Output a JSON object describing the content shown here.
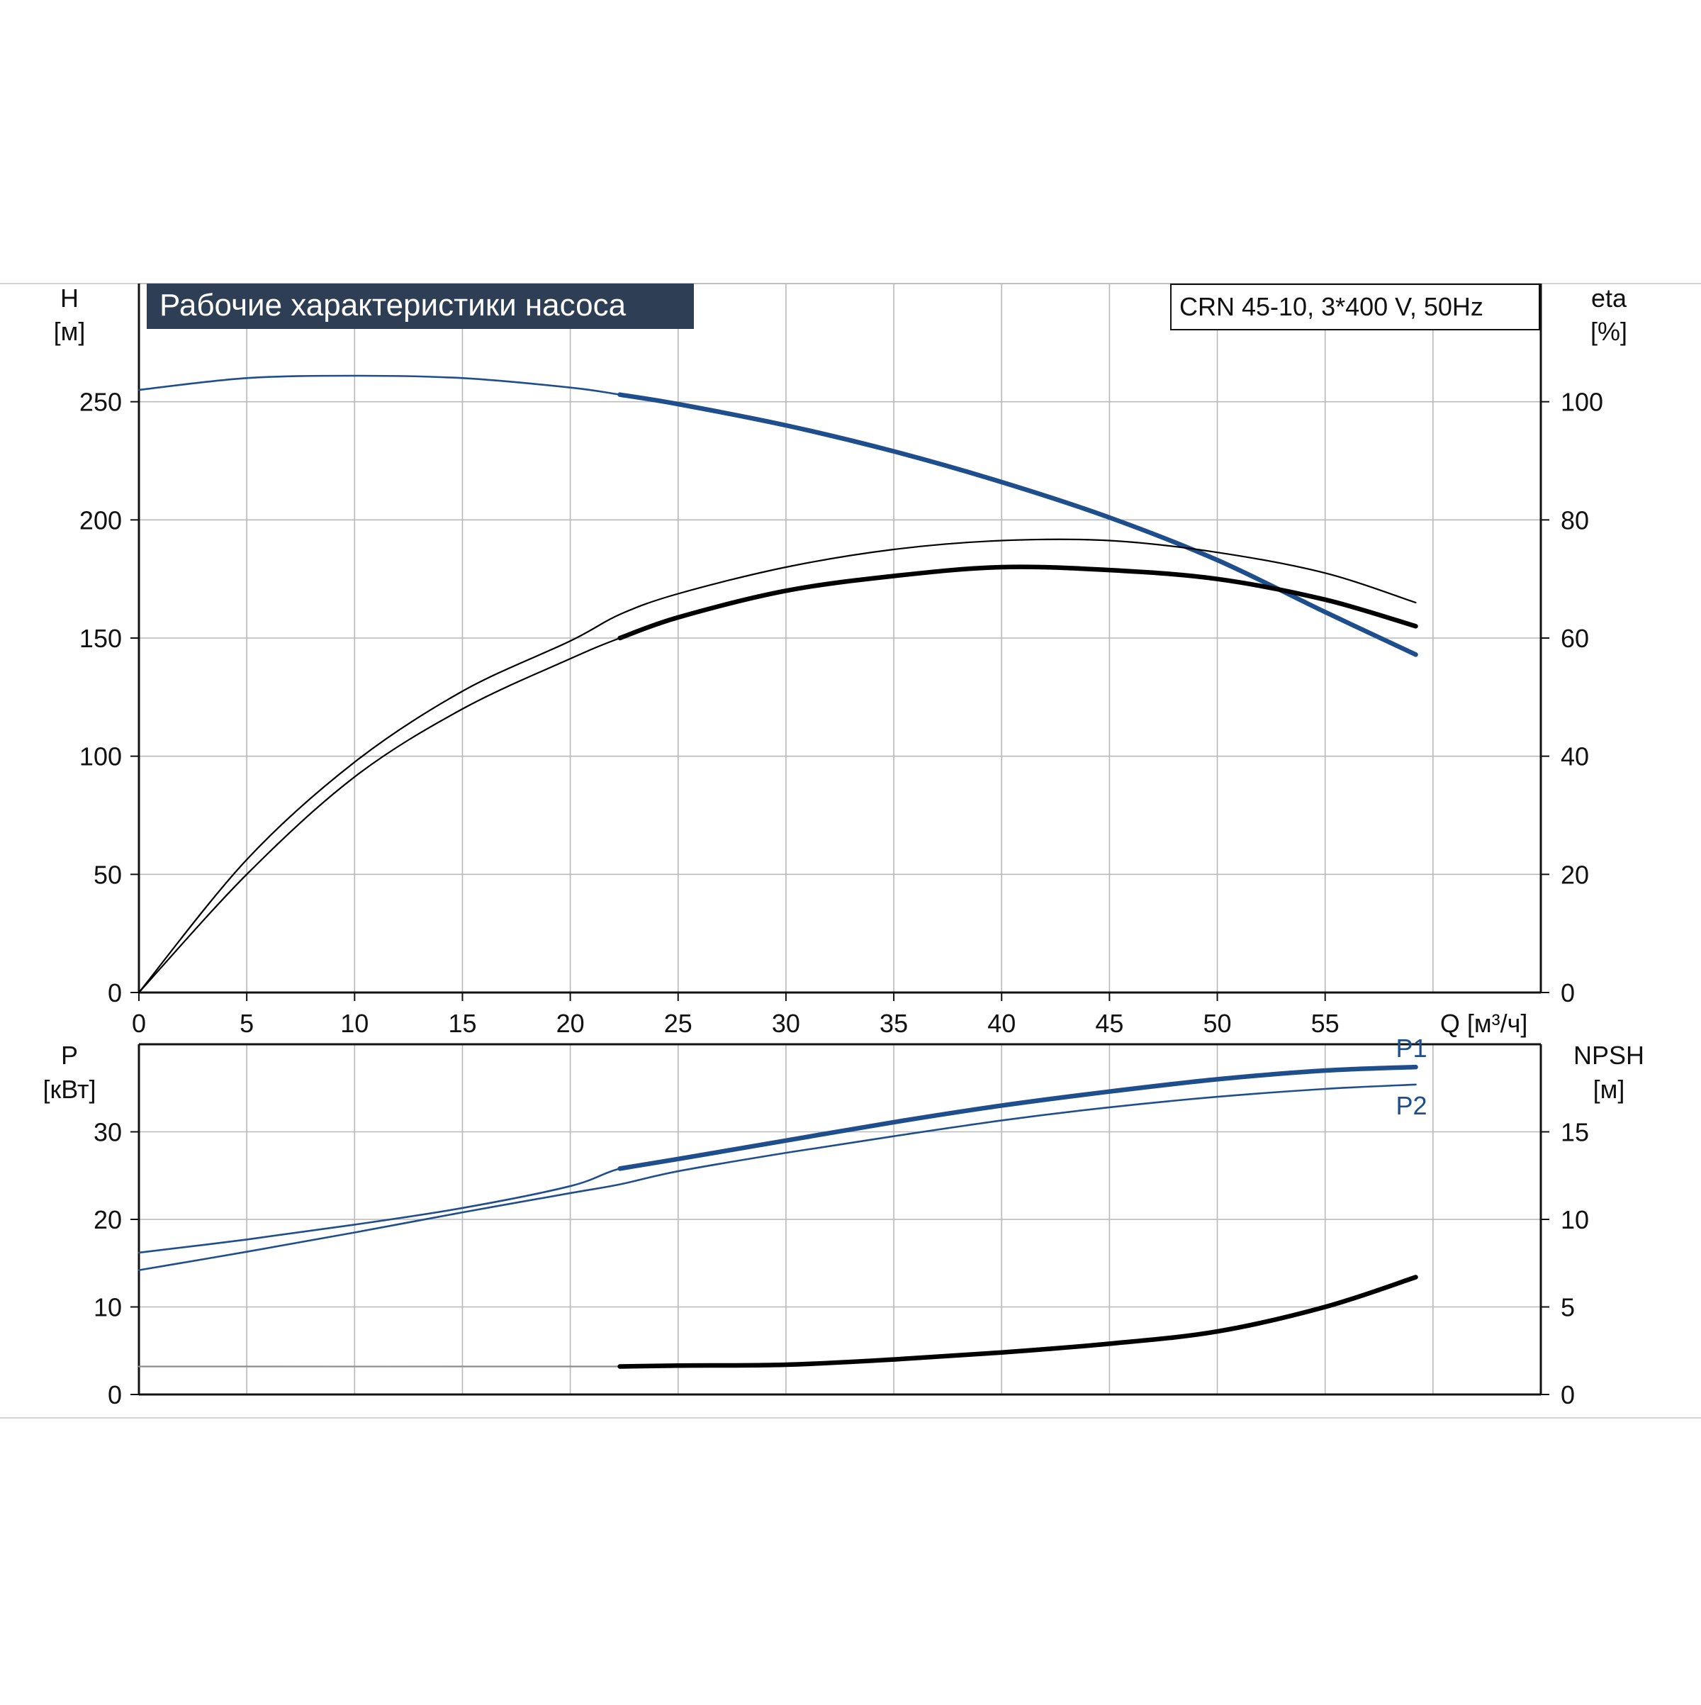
{
  "title_box": {
    "text": "Рабочие характеристики насоса",
    "bg": "#2e3f55",
    "fg": "#ffffff"
  },
  "model_box": {
    "text": "CRN 45-10, 3*400 V, 50Hz"
  },
  "colors": {
    "blue": "#1f4e8c",
    "black": "#000000",
    "grid": "#b9b9b9",
    "axis": "#111111",
    "gray_line": "#8c8c8c"
  },
  "chart_data": [
    {
      "type": "line",
      "name": "top",
      "xlabel": "Q [м³/ч]",
      "ylabel_left": [
        "H",
        "[м]"
      ],
      "ylabel_right": [
        "eta",
        "[%]"
      ],
      "xlim": [
        0,
        65
      ],
      "ylim_left": [
        0,
        300
      ],
      "ylim_right": [
        0,
        120
      ],
      "x_ticks": [
        0,
        5,
        10,
        15,
        20,
        25,
        30,
        35,
        40,
        45,
        50,
        55
      ],
      "y_ticks_left": [
        0,
        50,
        100,
        150,
        200,
        250
      ],
      "y_ticks_right": [
        0,
        20,
        40,
        60,
        80,
        100
      ],
      "grid": true,
      "series": [
        {
          "id": "head-curve",
          "axis": "left",
          "color": "blue",
          "thick_from": 22.3,
          "x": [
            0,
            5,
            10,
            15,
            20,
            22.3,
            25,
            30,
            35,
            40,
            45,
            50,
            55,
            59.2
          ],
          "y": [
            255,
            260,
            261,
            260,
            256,
            253,
            249,
            240,
            229,
            216,
            201,
            183,
            161,
            143
          ]
        },
        {
          "id": "efficiency-upper-curve",
          "axis": "right",
          "color": "black",
          "thick_from": null,
          "x": [
            0,
            5,
            10,
            15,
            20,
            22.3,
            25,
            30,
            35,
            40,
            45,
            50,
            55,
            59.2
          ],
          "y": [
            0,
            22.5,
            39,
            51,
            59.5,
            64,
            67.5,
            72,
            75,
            76.5,
            76.5,
            74.5,
            71,
            66
          ]
        },
        {
          "id": "efficiency-lower-curve",
          "axis": "right",
          "color": "black",
          "thick_from": 22.3,
          "x": [
            0,
            5,
            10,
            15,
            20,
            22.3,
            25,
            30,
            35,
            40,
            45,
            50,
            55,
            59.2
          ],
          "y": [
            0,
            20,
            36.5,
            48,
            56.5,
            60,
            63.5,
            68,
            70.5,
            72,
            71.5,
            70,
            66.5,
            62
          ]
        }
      ]
    },
    {
      "type": "line",
      "name": "bottom",
      "ylabel_left": [
        "P",
        "[кВт]"
      ],
      "ylabel_right": [
        "NPSH",
        "[м]"
      ],
      "xlim": [
        0,
        65
      ],
      "ylim_left": [
        0,
        40
      ],
      "ylim_right": [
        0,
        20
      ],
      "y_ticks_left": [
        0,
        10,
        20,
        30
      ],
      "y_ticks_right": [
        0,
        5,
        10,
        15
      ],
      "grid": true,
      "series": [
        {
          "id": "p1-curve",
          "name": "P1",
          "axis": "left",
          "color": "blue",
          "thick_from": 22.3,
          "x": [
            0,
            5,
            10,
            15,
            20,
            22.3,
            25,
            30,
            35,
            40,
            45,
            50,
            55,
            59.2
          ],
          "y": [
            16.2,
            17.7,
            19.4,
            21.3,
            23.8,
            25.8,
            26.9,
            29,
            31.1,
            33,
            34.6,
            36,
            37,
            37.4
          ]
        },
        {
          "id": "p2-curve",
          "name": "P2",
          "axis": "left",
          "color": "blue",
          "thick_from": null,
          "x": [
            0,
            5,
            10,
            15,
            20,
            22.3,
            25,
            30,
            35,
            40,
            45,
            50,
            55,
            59.2
          ],
          "y": [
            14.2,
            16.3,
            18.5,
            20.8,
            23,
            24,
            25.5,
            27.6,
            29.5,
            31.3,
            32.8,
            34,
            34.9,
            35.4
          ]
        },
        {
          "id": "npsh-curve",
          "axis": "right",
          "color": "black",
          "thick_from": 22.3,
          "x": [
            0,
            22.3,
            25,
            30,
            35,
            40,
            45,
            50,
            55,
            59.2
          ],
          "y": [
            1.6,
            1.6,
            1.65,
            1.7,
            2,
            2.4,
            2.9,
            3.6,
            5,
            6.7
          ]
        }
      ]
    }
  ]
}
